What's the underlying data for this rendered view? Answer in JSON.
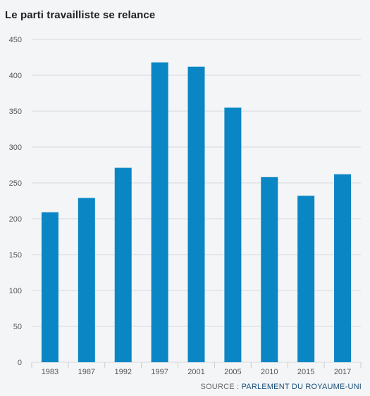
{
  "title": "Le parti travailliste se relance",
  "source": {
    "prefix": "SOURCE",
    "organization": "PARLEMENT DU ROYAUME-UNI"
  },
  "colors": {
    "bar": "#0a86c4",
    "grid": "#d6d9dd",
    "axis_text": "#555555",
    "background": "#f4f5f7"
  },
  "chart_data": {
    "type": "bar",
    "title": "Le parti travailliste se relance",
    "xlabel": "",
    "ylabel": "",
    "categories": [
      "1983",
      "1987",
      "1992",
      "1997",
      "2001",
      "2005",
      "2010",
      "2015",
      "2017"
    ],
    "values": [
      209,
      229,
      271,
      418,
      412,
      355,
      258,
      232,
      262
    ],
    "ylim": [
      0,
      450
    ],
    "yticks": [
      0,
      50,
      100,
      150,
      200,
      250,
      300,
      350,
      400,
      450
    ],
    "grid": true,
    "legend": "none"
  }
}
